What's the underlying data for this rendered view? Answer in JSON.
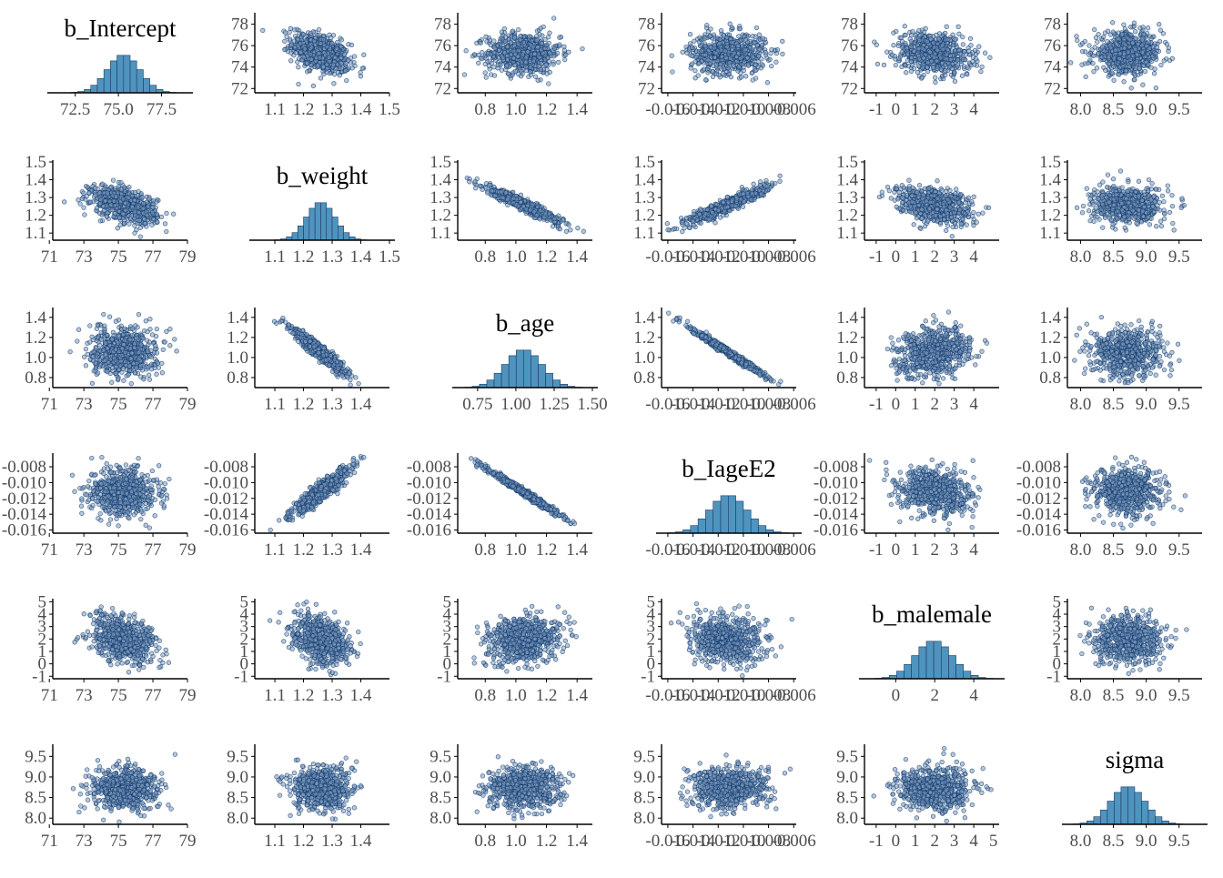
{
  "colors": {
    "point_fill": "#7f9bbf",
    "point_stroke": "#0e3a6b",
    "hist_fill": "#4f94bf",
    "hist_stroke": "#1b3a5e",
    "axis": "#000000",
    "tick_text": "#4d4d4d"
  },
  "chart_data": {
    "type": "scatter",
    "kind": "pairs-plot",
    "grid": false,
    "parameters": [
      {
        "name": "b_Intercept",
        "mean": 75.3,
        "sd": 0.95,
        "x_ticks": [
          "72.5",
          "75.0",
          "77.5"
        ],
        "x_tick_values": [
          72.5,
          75.0,
          77.5
        ],
        "x_range": [
          71.2,
          79.0
        ],
        "y_ticks": [
          "72",
          "74",
          "76",
          "78"
        ],
        "y_tick_values": [
          72,
          74,
          76,
          78
        ],
        "y_range": [
          71.6,
          78.9
        ]
      },
      {
        "name": "b_weight",
        "mean": 1.26,
        "sd": 0.05,
        "x_ticks": [
          "1.1",
          "1.2",
          "1.3",
          "1.4",
          "1.5"
        ],
        "x_tick_values": [
          1.1,
          1.2,
          1.3,
          1.4,
          1.5
        ],
        "x_range": [
          1.03,
          1.5
        ],
        "y_ticks": [
          "1.1",
          "1.2",
          "1.3",
          "1.4",
          "1.5"
        ],
        "y_tick_values": [
          1.1,
          1.2,
          1.3,
          1.4,
          1.5
        ],
        "y_range": [
          1.06,
          1.5
        ]
      },
      {
        "name": "b_age",
        "mean": 1.05,
        "sd": 0.12,
        "x_ticks": [
          "0.75",
          "1.00",
          "1.25",
          "1.50"
        ],
        "x_tick_values": [
          0.75,
          1.0,
          1.25,
          1.5
        ],
        "x_range": [
          0.62,
          1.5
        ],
        "y_ticks": [
          "0.8",
          "1.0",
          "1.2",
          "1.4"
        ],
        "y_tick_values": [
          0.8,
          1.0,
          1.2,
          1.4
        ],
        "y_range": [
          0.7,
          1.48
        ]
      },
      {
        "name": "b_IageE2",
        "mean": -0.0112,
        "sd": 0.0015,
        "x_ticks": [
          "-0.016",
          "-0.014",
          "-0.012",
          "-0.010",
          "-0.008",
          "-0.006"
        ],
        "x_tick_values": [
          -0.016,
          -0.014,
          -0.012,
          -0.01,
          -0.008,
          -0.006
        ],
        "x_range": [
          -0.0165,
          -0.0058
        ],
        "y_ticks": [
          "-0.008",
          "-0.010",
          "-0.012",
          "-0.014",
          "-0.016"
        ],
        "y_tick_values": [
          -0.008,
          -0.01,
          -0.012,
          -0.014,
          -0.016
        ],
        "y_range": [
          -0.0164,
          -0.0065
        ]
      },
      {
        "name": "b_malemale",
        "mean": 1.95,
        "sd": 0.95,
        "x_ticks": [
          "0",
          "2",
          "4"
        ],
        "x_tick_values": [
          0,
          2,
          4
        ],
        "x_range": [
          -1.6,
          5.3
        ],
        "y_ticks": [
          "-1",
          "0",
          "1",
          "2",
          "3",
          "4",
          "5"
        ],
        "y_tick_values": [
          -1,
          0,
          1,
          2,
          3,
          4,
          5
        ],
        "y_range": [
          -1.2,
          5.1
        ]
      },
      {
        "name": "sigma",
        "mean": 8.72,
        "sd": 0.26,
        "x_ticks": [
          "8.0",
          "8.5",
          "9.0",
          "9.5"
        ],
        "x_tick_values": [
          8.0,
          8.5,
          9.0,
          9.5
        ],
        "x_range": [
          7.8,
          9.85
        ],
        "y_ticks": [
          "8.0",
          "8.5",
          "9.0",
          "9.5"
        ],
        "y_tick_values": [
          8.0,
          8.5,
          9.0,
          9.5
        ],
        "y_range": [
          7.85,
          9.75
        ]
      }
    ],
    "correlations": [
      [
        1.0,
        -0.45,
        0.0,
        0.0,
        -0.2,
        0.0
      ],
      [
        -0.45,
        1.0,
        -0.95,
        0.92,
        -0.35,
        0.0
      ],
      [
        0.0,
        -0.95,
        1.0,
        -0.99,
        0.2,
        0.0
      ],
      [
        0.0,
        0.92,
        -0.99,
        1.0,
        -0.18,
        0.0
      ],
      [
        -0.2,
        -0.35,
        0.2,
        -0.18,
        1.0,
        0.0
      ],
      [
        0.0,
        0.0,
        0.0,
        0.0,
        0.0,
        1.0
      ]
    ],
    "x_tick_overrides": {
      "0-1": {
        "labels": [
          "1.1",
          "1.2",
          "1.3",
          "1.4",
          "1.5"
        ],
        "values": [
          1.1,
          1.2,
          1.3,
          1.4,
          1.5
        ]
      },
      "0-2": {
        "labels": [
          "0.8",
          "1.0",
          "1.2",
          "1.4"
        ],
        "values": [
          0.8,
          1.0,
          1.2,
          1.4
        ]
      },
      "0-4": {
        "labels": [
          "-1",
          "0",
          "1",
          "2",
          "3",
          "4"
        ],
        "values": [
          -1,
          0,
          1,
          2,
          3,
          4
        ]
      },
      "1-0": {
        "labels": [
          "71",
          "73",
          "75",
          "77",
          "79"
        ],
        "values": [
          71,
          73,
          75,
          77,
          79
        ]
      },
      "1-2": {
        "labels": [
          "0.8",
          "1.0",
          "1.2",
          "1.4"
        ],
        "values": [
          0.8,
          1.0,
          1.2,
          1.4
        ]
      },
      "1-4": {
        "labels": [
          "-1",
          "0",
          "1",
          "2",
          "3",
          "4"
        ],
        "values": [
          -1,
          0,
          1,
          2,
          3,
          4
        ]
      },
      "2-0": {
        "labels": [
          "71",
          "73",
          "75",
          "77",
          "79"
        ],
        "values": [
          71,
          73,
          75,
          77,
          79
        ]
      },
      "2-1": {
        "labels": [
          "1.1",
          "1.2",
          "1.3",
          "1.4"
        ],
        "values": [
          1.1,
          1.2,
          1.3,
          1.4
        ]
      },
      "2-4": {
        "labels": [
          "-1",
          "0",
          "1",
          "2",
          "3",
          "4"
        ],
        "values": [
          -1,
          0,
          1,
          2,
          3,
          4
        ]
      },
      "3-0": {
        "labels": [
          "71",
          "73",
          "75",
          "77",
          "79"
        ],
        "values": [
          71,
          73,
          75,
          77,
          79
        ]
      },
      "3-1": {
        "labels": [
          "1.1",
          "1.2",
          "1.3",
          "1.4"
        ],
        "values": [
          1.1,
          1.2,
          1.3,
          1.4
        ]
      },
      "3-2": {
        "labels": [
          "0.8",
          "1.0",
          "1.2",
          "1.4"
        ],
        "values": [
          0.8,
          1.0,
          1.2,
          1.4
        ]
      },
      "3-4": {
        "labels": [
          "-1",
          "0",
          "1",
          "2",
          "3",
          "4"
        ],
        "values": [
          -1,
          0,
          1,
          2,
          3,
          4
        ]
      },
      "4-0": {
        "labels": [
          "71",
          "73",
          "75",
          "77",
          "79"
        ],
        "values": [
          71,
          73,
          75,
          77,
          79
        ]
      },
      "4-1": {
        "labels": [
          "1.1",
          "1.2",
          "1.3",
          "1.4"
        ],
        "values": [
          1.1,
          1.2,
          1.3,
          1.4
        ]
      },
      "4-2": {
        "labels": [
          "0.8",
          "1.0",
          "1.2",
          "1.4"
        ],
        "values": [
          0.8,
          1.0,
          1.2,
          1.4
        ]
      },
      "5-0": {
        "labels": [
          "71",
          "73",
          "75",
          "77",
          "79"
        ],
        "values": [
          71,
          73,
          75,
          77,
          79
        ]
      },
      "5-1": {
        "labels": [
          "1.1",
          "1.2",
          "1.3",
          "1.4"
        ],
        "values": [
          1.1,
          1.2,
          1.3,
          1.4
        ]
      },
      "5-2": {
        "labels": [
          "0.8",
          "1.0",
          "1.2",
          "1.4"
        ],
        "values": [
          0.8,
          1.0,
          1.2,
          1.4
        ]
      },
      "5-4": {
        "labels": [
          "-1",
          "0",
          "1",
          "2",
          "3",
          "4",
          "5"
        ],
        "values": [
          -1,
          0,
          1,
          2,
          3,
          4,
          5
        ]
      }
    },
    "points_per_scatter": 650,
    "histogram_bins": 22
  }
}
